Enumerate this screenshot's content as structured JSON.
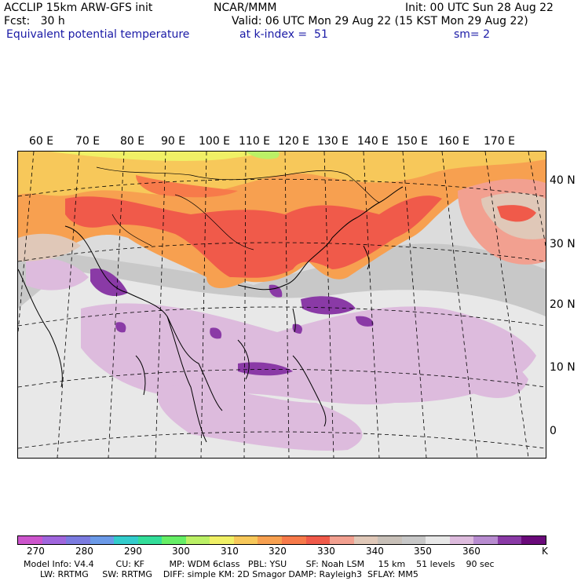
{
  "header": {
    "left1": "ACCLIP 15km ARW-GFS init",
    "left2": "Fcst:   30 h",
    "field": "Equivalent potential temperature",
    "center1": "NCAR/MMM",
    "init": "Init: 00 UTC Sun 28 Aug 22",
    "valid": "Valid: 06 UTC Mon 29 Aug 22 (15 KST Mon 29 Aug 22)",
    "level": "at k-index =  51",
    "smooth": "sm= 2"
  },
  "map": {
    "lon_labels": [
      "60 E",
      "70 E",
      "80 E",
      "90 E",
      "100 E",
      "110 E",
      "120 E",
      "130 E",
      "140 E",
      "150 E",
      "160 E",
      "170 E"
    ],
    "lat_labels": [
      "40 N",
      "30 N",
      "20 N",
      "10 N",
      "0"
    ]
  },
  "colorbar": {
    "colors": [
      "#cc55cc",
      "#a066dd",
      "#7b7be0",
      "#6b9ae8",
      "#33cccc",
      "#33dd99",
      "#66ee66",
      "#bbf066",
      "#f0f066",
      "#f7c85a",
      "#f7a050",
      "#f77a4a",
      "#f05a4a",
      "#f2a090",
      "#e0c8b8",
      "#c8c0b8",
      "#c8c8c8",
      "#e8e8e8",
      "#ddbbdd",
      "#b88cd0",
      "#8a3aa6",
      "#6a0a7a"
    ],
    "tick_labels": [
      "270",
      "280",
      "290",
      "300",
      "310",
      "320",
      "330",
      "340",
      "350",
      "360"
    ],
    "unit": "K"
  },
  "model_info": {
    "line1": "Model Info: V4.4        CU: KF         MP: WDM 6class   PBL: YSU       SF: Noah LSM     15 km    51 levels    90 sec",
    "line2": "      LW: RRTMG     SW: RRTMG    DIFF: simple KM: 2D Smagor DAMP: Rayleigh3  SFLAY: MM5"
  }
}
